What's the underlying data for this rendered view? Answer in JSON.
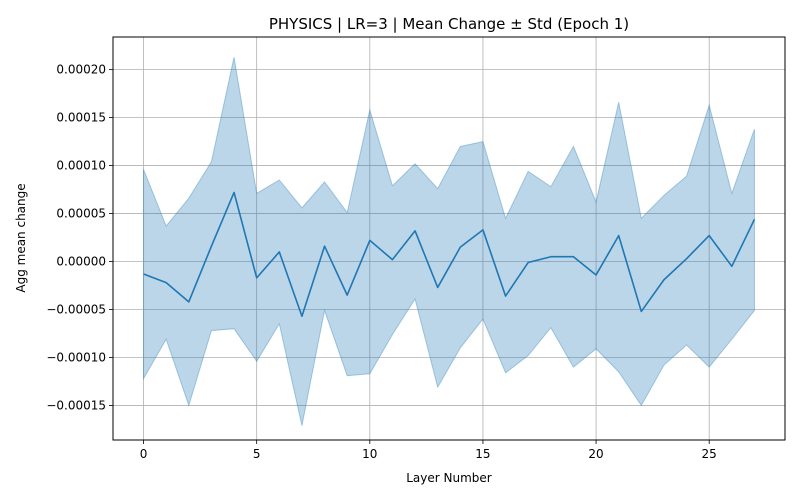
{
  "chart_data": {
    "type": "line",
    "title": "PHYSICS | LR=3 | Mean Change ± Std (Epoch 1)",
    "xlabel": "Layer Number",
    "ylabel": "Agg mean change",
    "xlim": [
      -1.35,
      28.35
    ],
    "ylim": [
      -0.000186,
      0.000234
    ],
    "xticks": [
      0,
      5,
      10,
      15,
      20,
      25
    ],
    "xtick_labels": [
      "0",
      "5",
      "10",
      "15",
      "20",
      "25"
    ],
    "yticks": [
      -0.00015,
      -0.0001,
      -5e-05,
      0.0,
      5e-05,
      0.0001,
      0.00015,
      0.0002
    ],
    "ytick_labels": [
      "−0.00015",
      "−0.00010",
      "−0.00005",
      "0.00000",
      "0.00005",
      "0.00010",
      "0.00015",
      "0.00020"
    ],
    "grid": true,
    "colors": {
      "line": "#1f77b4",
      "band": "#1f77b4",
      "grid": "#b0b0b0"
    },
    "x": [
      0,
      1,
      2,
      3,
      4,
      5,
      6,
      7,
      8,
      9,
      10,
      11,
      12,
      13,
      14,
      15,
      16,
      17,
      18,
      19,
      20,
      21,
      22,
      23,
      24,
      25,
      26,
      27
    ],
    "series": [
      {
        "mean": [
          -1.3e-05,
          -2.2e-05,
          -4.2e-05,
          1.6e-05,
          7.2e-05,
          -1.7e-05,
          1e-05,
          -5.7e-05,
          1.6e-05,
          -3.5e-05,
          2.2e-05,
          2e-06,
          3.2e-05,
          -2.7e-05,
          1.5e-05,
          3.3e-05,
          -3.6e-05,
          -1e-06,
          5e-06,
          5e-06,
          -1.4e-05,
          2.7e-05,
          -5.2e-05,
          -1.9e-05,
          3e-06,
          2.7e-05,
          -5e-06,
          4.4e-05
        ],
        "upper": [
          9.6e-05,
          3.7e-05,
          6.6e-05,
          0.000104,
          0.000213,
          7.1e-05,
          8.5e-05,
          5.6e-05,
          8.3e-05,
          5.1e-05,
          0.000158,
          7.9e-05,
          0.000102,
          7.6e-05,
          0.00012,
          0.000125,
          4.5e-05,
          9.4e-05,
          7.8e-05,
          0.00012,
          6.2e-05,
          0.000166,
          4.5e-05,
          6.9e-05,
          8.9e-05,
          0.000163,
          7.1e-05,
          0.000138
        ],
        "lower": [
          -0.000122,
          -8.1e-05,
          -0.00015,
          -7.2e-05,
          -7e-05,
          -0.000104,
          -6.5e-05,
          -0.000171,
          -5.1e-05,
          -0.000119,
          -0.000117,
          -7.6e-05,
          -3.9e-05,
          -0.000131,
          -9e-05,
          -6e-05,
          -0.000116,
          -9.8e-05,
          -6.9e-05,
          -0.00011,
          -9.1e-05,
          -0.000115,
          -0.00015,
          -0.000108,
          -8.7e-05,
          -0.00011,
          -8.1e-05,
          -5.1e-05
        ]
      }
    ]
  }
}
